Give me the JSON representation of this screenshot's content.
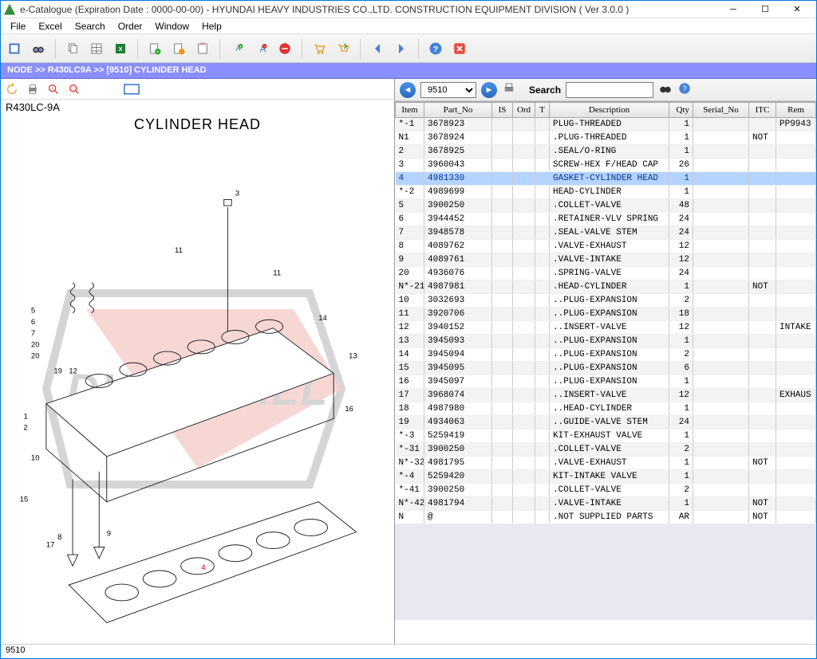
{
  "window": {
    "title": "e-Catalogue (Expiration Date : 0000-00-00)  -   HYUNDAI HEAVY INDUSTRIES CO.,LTD. CONSTRUCTION EQUIPMENT DIVISION ( Ver 3.0.0 )"
  },
  "menu": [
    "File",
    "Excel",
    "Search",
    "Order",
    "Window",
    "Help"
  ],
  "breadcrumb": "NODE >> R430LC9A >> [9510] CYLINDER HEAD",
  "left": {
    "model": "R430LC-9A",
    "title": "CYLINDER HEAD"
  },
  "right": {
    "combo_value": "9510",
    "search_label": "Search",
    "search_value": ""
  },
  "columns": [
    "Item",
    "Part_No",
    "IS",
    "Ord",
    "T",
    "Description",
    "Qty",
    "Serial_No",
    "ITC",
    "Rem"
  ],
  "highlight_index": 4,
  "rows": [
    {
      "item": "*-1",
      "part": "3678923",
      "desc": "PLUG-THREADED",
      "qty": "1",
      "itc": "",
      "rem": "PP9943"
    },
    {
      "item": "N1",
      "part": "3678924",
      "desc": ".PLUG-THREADED",
      "qty": "1",
      "itc": "NOT",
      "rem": ""
    },
    {
      "item": "2",
      "part": "3678925",
      "desc": ".SEAL/O-RING",
      "qty": "1",
      "itc": "",
      "rem": ""
    },
    {
      "item": "3",
      "part": "3960043",
      "desc": "SCREW-HEX F/HEAD CAP",
      "qty": "26",
      "itc": "",
      "rem": ""
    },
    {
      "item": "4",
      "part": "4981330",
      "desc": "GASKET-CYLINDER HEAD",
      "qty": "1",
      "itc": "",
      "rem": ""
    },
    {
      "item": "*-2",
      "part": "4989699",
      "desc": "HEAD-CYLINDER",
      "qty": "1",
      "itc": "",
      "rem": ""
    },
    {
      "item": "5",
      "part": "3900250",
      "desc": ".COLLET-VALVE",
      "qty": "48",
      "itc": "",
      "rem": ""
    },
    {
      "item": "6",
      "part": "3944452",
      "desc": ".RETAINER-VLV SPRING",
      "qty": "24",
      "itc": "",
      "rem": ""
    },
    {
      "item": "7",
      "part": "3948578",
      "desc": ".SEAL-VALVE STEM",
      "qty": "24",
      "itc": "",
      "rem": ""
    },
    {
      "item": "8",
      "part": "4089762",
      "desc": ".VALVE-EXHAUST",
      "qty": "12",
      "itc": "",
      "rem": ""
    },
    {
      "item": "9",
      "part": "4089761",
      "desc": ".VALVE-INTAKE",
      "qty": "12",
      "itc": "",
      "rem": ""
    },
    {
      "item": "20",
      "part": "4936076",
      "desc": ".SPRING-VALVE",
      "qty": "24",
      "itc": "",
      "rem": ""
    },
    {
      "item": "N*-21",
      "part": "4987981",
      "desc": ".HEAD-CYLINDER",
      "qty": "1",
      "itc": "NOT",
      "rem": ""
    },
    {
      "item": "10",
      "part": "3032693",
      "desc": "..PLUG-EXPANSION",
      "qty": "2",
      "itc": "",
      "rem": ""
    },
    {
      "item": "11",
      "part": "3920706",
      "desc": "..PLUG-EXPANSION",
      "qty": "18",
      "itc": "",
      "rem": ""
    },
    {
      "item": "12",
      "part": "3940152",
      "desc": "..INSERT-VALVE",
      "qty": "12",
      "itc": "",
      "rem": "INTAKE"
    },
    {
      "item": "13",
      "part": "3945093",
      "desc": "..PLUG-EXPANSION",
      "qty": "1",
      "itc": "",
      "rem": ""
    },
    {
      "item": "14",
      "part": "3945094",
      "desc": "..PLUG-EXPANSION",
      "qty": "2",
      "itc": "",
      "rem": ""
    },
    {
      "item": "15",
      "part": "3945095",
      "desc": "..PLUG-EXPANSION",
      "qty": "6",
      "itc": "",
      "rem": ""
    },
    {
      "item": "16",
      "part": "3945097",
      "desc": "..PLUG-EXPANSION",
      "qty": "1",
      "itc": "",
      "rem": ""
    },
    {
      "item": "17",
      "part": "3968074",
      "desc": "..INSERT-VALVE",
      "qty": "12",
      "itc": "",
      "rem": "EXHAUS"
    },
    {
      "item": "18",
      "part": "4987980",
      "desc": "..HEAD-CYLINDER",
      "qty": "1",
      "itc": "",
      "rem": ""
    },
    {
      "item": "19",
      "part": "4934063",
      "desc": "..GUIDE-VALVE STEM",
      "qty": "24",
      "itc": "",
      "rem": ""
    },
    {
      "item": "*-3",
      "part": "5259419",
      "desc": "KIT-EXHAUST VALVE",
      "qty": "1",
      "itc": "",
      "rem": ""
    },
    {
      "item": "*-31",
      "part": "3900250",
      "desc": ".COLLET-VALVE",
      "qty": "2",
      "itc": "",
      "rem": ""
    },
    {
      "item": "N*-32",
      "part": "4981795",
      "desc": ".VALVE-EXHAUST",
      "qty": "1",
      "itc": "NOT",
      "rem": ""
    },
    {
      "item": "*-4",
      "part": "5259420",
      "desc": "KIT-INTAKE VALVE",
      "qty": "1",
      "itc": "",
      "rem": ""
    },
    {
      "item": "*-41",
      "part": "3900250",
      "desc": ".COLLET-VALVE",
      "qty": "2",
      "itc": "",
      "rem": ""
    },
    {
      "item": "N*-42",
      "part": "4981794",
      "desc": ".VALVE-INTAKE",
      "qty": "1",
      "itc": "NOT",
      "rem": ""
    },
    {
      "item": "N",
      "part": "@",
      "desc": ".NOT SUPPLIED PARTS",
      "qty": "AR",
      "itc": "NOT",
      "rem": ""
    }
  ],
  "status": "9510",
  "watermark_text": "DIAG MALL",
  "colors": {
    "highlight_bg": "#b5d3ff",
    "breadcrumb_bg": "#8a8eff",
    "watermark_primary": "#d83a2b",
    "watermark_secondary": "#444"
  }
}
